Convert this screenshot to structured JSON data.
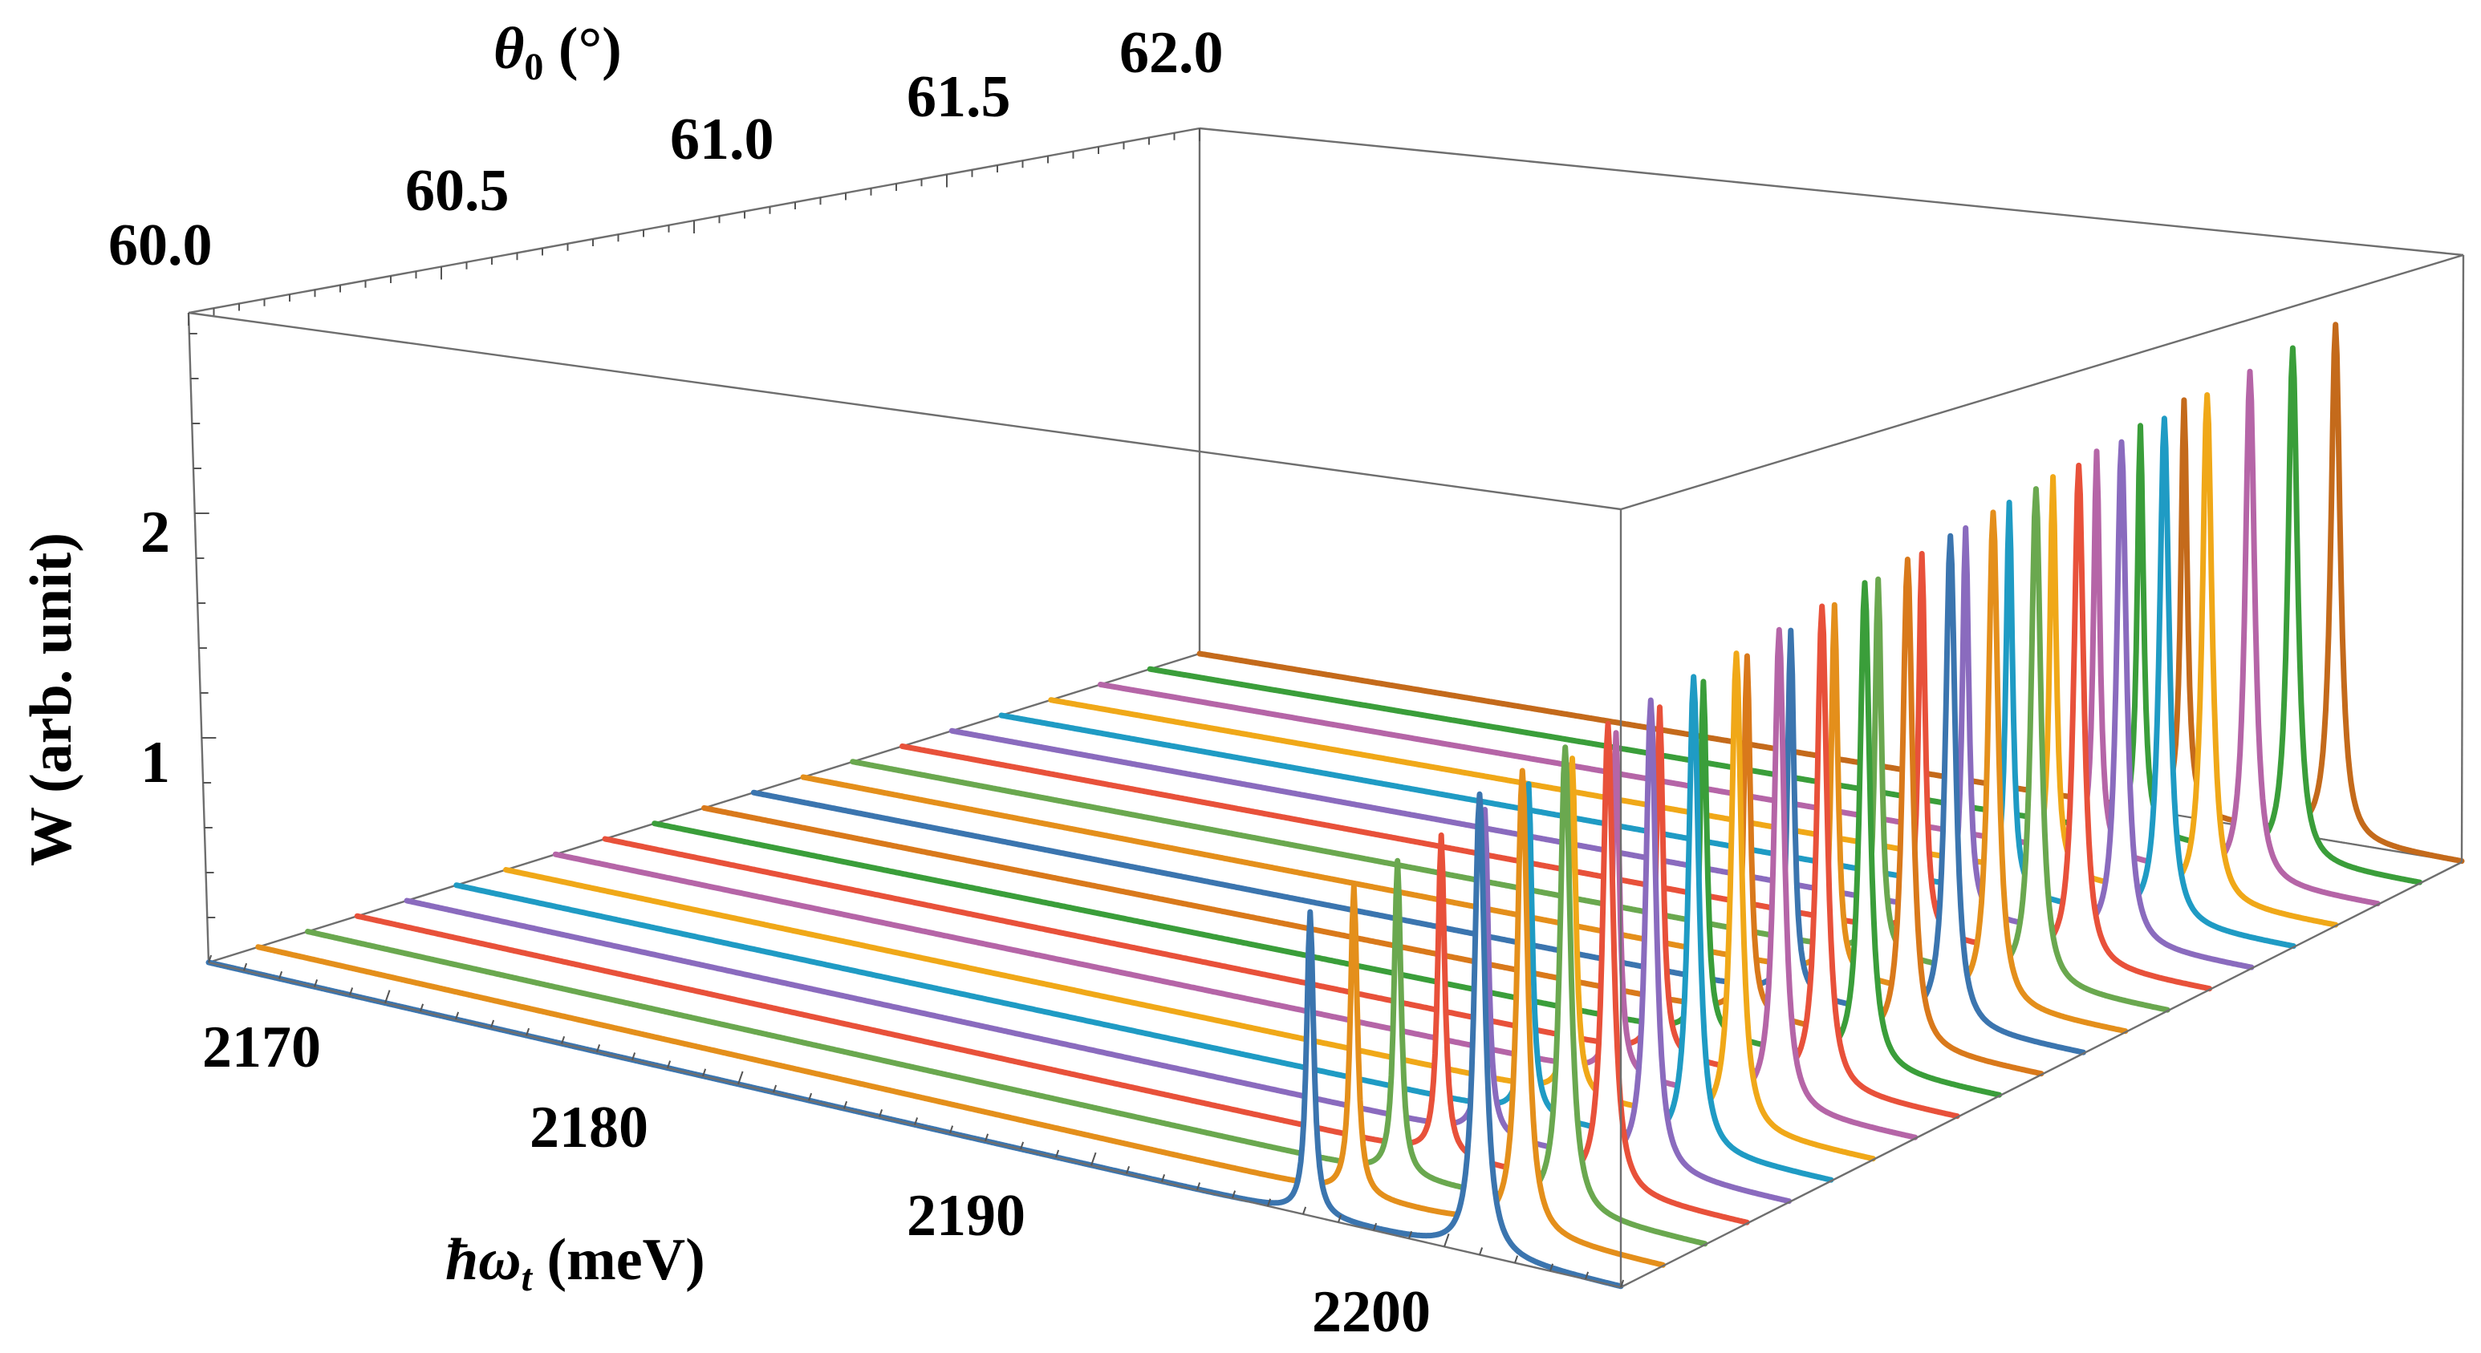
{
  "chart_data": {
    "type": "line",
    "projection": "3d-waterfall",
    "x_axis": {
      "label_parts": {
        "hbar_omega": "ħω",
        "subscript": "t",
        "unit": " (meV)"
      },
      "range": [
        2165,
        2205
      ],
      "ticks": [
        2170,
        2180,
        2190,
        2200
      ],
      "tick_labels": [
        "2170",
        "2180",
        "2190",
        "2200"
      ]
    },
    "y_axis": {
      "label_parts": {
        "theta": "θ",
        "subscript": "0",
        "unit": " (°)"
      },
      "range": [
        60.0,
        62.0
      ],
      "ticks": [
        60.0,
        60.5,
        61.0,
        61.5,
        62.0
      ],
      "tick_labels": [
        "60.0",
        "60.5",
        "61.0",
        "61.5",
        "62.0"
      ]
    },
    "z_axis": {
      "label": "W (arb. unit)",
      "range": [
        0,
        3.0
      ],
      "ticks": [
        1,
        2
      ],
      "tick_labels": [
        "1",
        "2"
      ]
    },
    "series_count": 21,
    "theta_values": [
      60.0,
      60.1,
      60.2,
      60.3,
      60.4,
      60.5,
      60.6,
      60.7,
      60.8,
      60.9,
      61.0,
      61.1,
      61.2,
      61.3,
      61.4,
      61.5,
      61.6,
      61.7,
      61.8,
      61.9,
      62.0
    ],
    "peak1": {
      "center_meV": 2196.2,
      "width_meV": 0.12,
      "height_start": 1.35,
      "height_end": 1.85
    },
    "peak2": {
      "center_meV": 2201.0,
      "width_meV": 0.18,
      "height_start": 2.05,
      "height_end": 2.3
    },
    "series_colors": [
      "#3b75af",
      "#e48f1b",
      "#6aa84f",
      "#e8513a",
      "#8a6bbe",
      "#1f9bc4",
      "#f0a818",
      "#b565a7",
      "#e8513a",
      "#3a9e3a",
      "#d9791b",
      "#3b75af",
      "#e48f1b",
      "#6aa84f",
      "#e8513a",
      "#8a6bbe",
      "#1f9bc4",
      "#f0a818",
      "#b565a7",
      "#3a9e3a",
      "#c46a1b"
    ]
  }
}
